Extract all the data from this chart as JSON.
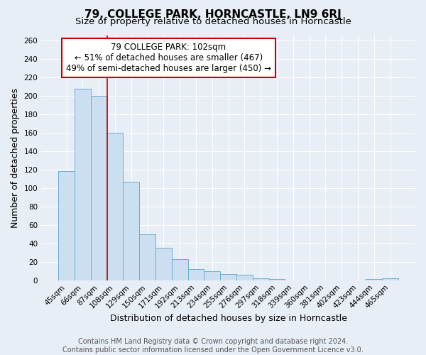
{
  "title": "79, COLLEGE PARK, HORNCASTLE, LN9 6RJ",
  "subtitle": "Size of property relative to detached houses in Horncastle",
  "xlabel": "Distribution of detached houses by size in Horncastle",
  "ylabel": "Number of detached properties",
  "categories": [
    "45sqm",
    "66sqm",
    "87sqm",
    "108sqm",
    "129sqm",
    "150sqm",
    "171sqm",
    "192sqm",
    "213sqm",
    "234sqm",
    "255sqm",
    "276sqm",
    "297sqm",
    "318sqm",
    "339sqm",
    "360sqm",
    "381sqm",
    "402sqm",
    "423sqm",
    "444sqm",
    "465sqm"
  ],
  "values": [
    118,
    207,
    200,
    160,
    107,
    50,
    35,
    23,
    12,
    10,
    7,
    6,
    2,
    1,
    0,
    0,
    0,
    0,
    0,
    1,
    2
  ],
  "bar_color": "#ccdff0",
  "bar_edge_color": "#6aaed6",
  "bar_width": 1.0,
  "red_line_x": 2.5,
  "annotation_title": "79 COLLEGE PARK: 102sqm",
  "annotation_line1": "← 51% of detached houses are smaller (467)",
  "annotation_line2": "49% of semi-detached houses are larger (450) →",
  "annotation_box_color": "#ffffff",
  "annotation_box_edge_color": "#cc0000",
  "ylim": [
    0,
    265
  ],
  "yticks": [
    0,
    20,
    40,
    60,
    80,
    100,
    120,
    140,
    160,
    180,
    200,
    220,
    240,
    260
  ],
  "footer_line1": "Contains HM Land Registry data © Crown copyright and database right 2024.",
  "footer_line2": "Contains public sector information licensed under the Open Government Licence v3.0.",
  "background_color": "#e8eef5",
  "plot_bg_color": "#e8eef5",
  "grid_color": "#ffffff",
  "title_fontsize": 11,
  "subtitle_fontsize": 9.5,
  "axis_label_fontsize": 9,
  "tick_fontsize": 7.5,
  "footer_fontsize": 7
}
